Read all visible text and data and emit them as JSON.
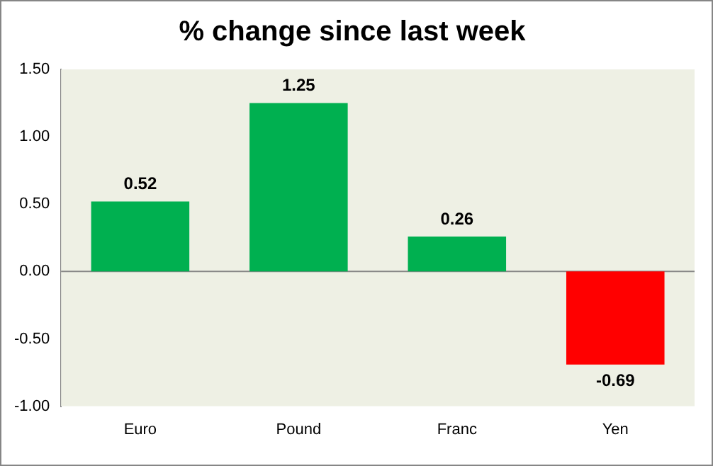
{
  "chart_data": {
    "type": "bar",
    "title": "% change since last week",
    "categories": [
      "Euro",
      "Pound",
      "Franc",
      "Yen"
    ],
    "values": [
      0.52,
      1.25,
      0.26,
      -0.69
    ],
    "colors": [
      "#00b050",
      "#00b050",
      "#00b050",
      "#ff0000"
    ],
    "ylim": [
      -1,
      1.5
    ],
    "yticks": [
      {
        "value": -1,
        "label": "-1.00"
      },
      {
        "value": -0.5,
        "label": "-0.50"
      },
      {
        "value": 0,
        "label": "0.00"
      },
      {
        "value": 0.5,
        "label": "0.50"
      },
      {
        "value": 1,
        "label": "1.00"
      },
      {
        "value": 1.5,
        "label": "1.50"
      }
    ],
    "ref_lines": [
      {
        "axis": "y",
        "value": 0,
        "color": "#868686"
      }
    ],
    "data_labels": true,
    "grid": false,
    "legend": false
  }
}
